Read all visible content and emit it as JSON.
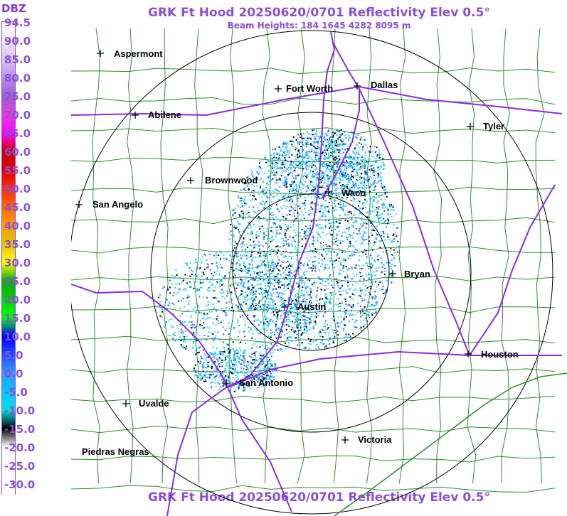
{
  "title": "GRK Ft Hood 20250620/0701 Reflectivity Elev 0.5°",
  "subtitle": "Beam Heights: 184 1645 4282 8095 m",
  "legend": {
    "unit": "DBZ",
    "ticks": [
      "94.5",
      "90.0",
      "85.0",
      "80.0",
      "75.0",
      "70.0",
      "65.0",
      "60.0",
      "55.0",
      "50.0",
      "45.0",
      "40.0",
      "35.0",
      "30.0",
      "25.0",
      "20.0",
      "15.0",
      "10.0",
      "5.0",
      "0.0",
      "-5.0",
      "-10.0",
      "-15.0",
      "-20.0",
      "-25.0",
      "-30.0"
    ],
    "colors": [
      "#ffffff",
      "#f0e8ff",
      "#d9c4f5",
      "#b88ee8",
      "#9c5fd8",
      "#e33dd6",
      "#ff00ff",
      "#cc0000",
      "#e00000",
      "#ff2a00",
      "#ff6a00",
      "#ff9a00",
      "#e6c000",
      "#ffff00",
      "#00b000",
      "#00d000",
      "#00ff00",
      "#0000ff",
      "#2050ff",
      "#3399ff",
      "#00c8ff",
      "#00e0e0",
      "#000000",
      "#ffffff",
      "#ffffff",
      "#ffffff"
    ]
  },
  "radar": {
    "site": "GRK",
    "name": "Ft Hood",
    "elevation": "0.5°"
  },
  "cities": [
    {
      "name": "Aspermont"
    },
    {
      "name": "Fort Worth"
    },
    {
      "name": "Dallas"
    },
    {
      "name": "Abilene"
    },
    {
      "name": "Tyler"
    },
    {
      "name": "Brownwood"
    },
    {
      "name": "Waco"
    },
    {
      "name": "San Angelo"
    },
    {
      "name": "Bryan"
    },
    {
      "name": "Austin"
    },
    {
      "name": "Houston"
    },
    {
      "name": "San Antonio"
    },
    {
      "name": "Uvalde"
    },
    {
      "name": "Victoria"
    },
    {
      "name": "Piedras Negras"
    }
  ]
}
